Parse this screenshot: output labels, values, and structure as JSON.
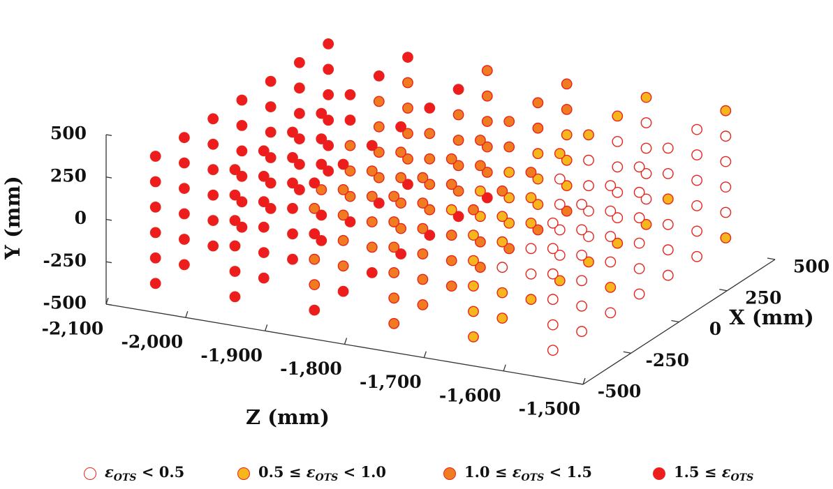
{
  "chart_data": {
    "type": "scatter",
    "dimensions": 3,
    "xlabel": "X (mm)",
    "ylabel": "Y (mm)",
    "zlabel": "Z (mm)",
    "x_ticks": [
      "-500",
      "-250",
      "0",
      "250",
      "500"
    ],
    "y_ticks": [
      "500",
      "250",
      "0",
      "-250",
      "-500"
    ],
    "z_ticks": [
      "-2,100",
      "-2,000",
      "-1,900",
      "-1,800",
      "-1,700",
      "-1,600",
      "-1,500"
    ],
    "xlim": [
      -500,
      500
    ],
    "ylim": [
      -500,
      500
    ],
    "zlim": [
      -2100,
      -1500
    ],
    "grid": false,
    "legend_position": "bottom",
    "categories": [
      {
        "name": "lt05",
        "fill": "#ffffff",
        "stroke": "#e8231c"
      },
      {
        "name": "05to10",
        "fill": "#f7b51e",
        "stroke": "#e8231c"
      },
      {
        "name": "10to15",
        "fill": "#f07b20",
        "stroke": "#e8231c"
      },
      {
        "name": "ge15",
        "fill": "#ee1d1d",
        "stroke": "#e8231c"
      }
    ],
    "legend": [
      {
        "sym": "ε",
        "sub": "OTS",
        "pre": "",
        "post": " < 0.5"
      },
      {
        "sym": "ε",
        "sub": "OTS",
        "pre": "0.5 ≤ ",
        "post": " < 1.0"
      },
      {
        "sym": "ε",
        "sub": "OTS",
        "pre": "1.0 ≤ ",
        "post": " < 1.5"
      },
      {
        "sym": "ε",
        "sub": "OTS",
        "pre": "1.5 ≤ ",
        "post": ""
      }
    ],
    "planes": [
      {
        "z": -2050,
        "rows": [
          "3333333",
          "3333333",
          "3333333",
          "3333333",
          "3333333",
          "3333333"
        ]
      },
      {
        "z": -1950,
        "rows": [
          "3333333",
          "3333322",
          "3333222",
          "3332222",
          "3333222",
          "3333333"
        ]
      },
      {
        "z": -1850,
        "rows": [
          "3333332",
          "2222222",
          "3222222",
          "2222222",
          "2222222",
          "3333333"
        ]
      },
      {
        "z": -1750,
        "rows": [
          "2222222",
          "2222222",
          "2211111",
          "2221111",
          "2222111",
          "2222222"
        ]
      },
      {
        "z": -1650,
        "rows": [
          "2221111",
          "1110000",
          "1110000",
          "1000000",
          "1100000",
          "1111111"
        ]
      },
      {
        "z": -1550,
        "rows": [
          "0000001",
          "0000000",
          "0000100",
          "0000000",
          "0010000",
          "0000001"
        ]
      }
    ]
  }
}
